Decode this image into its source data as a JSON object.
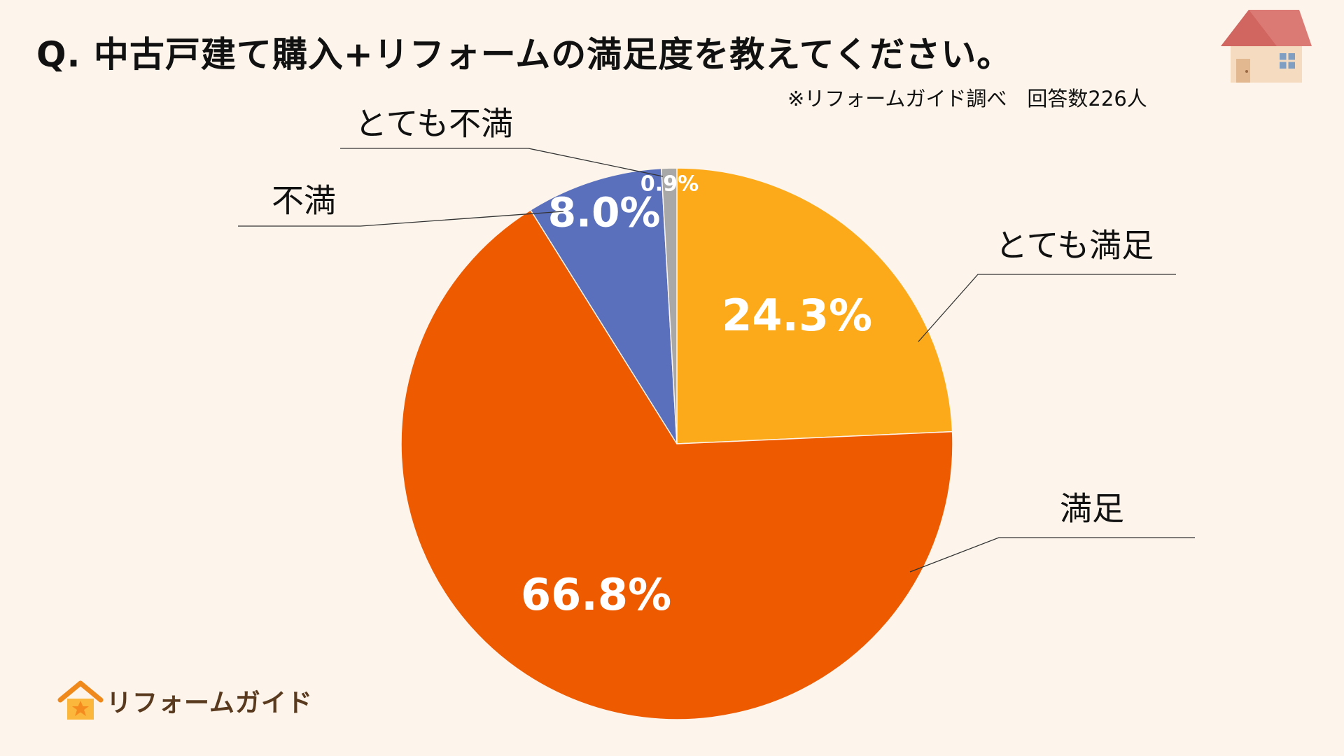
{
  "header": {
    "title": "Q.  中古戸建て購入+リフォームの満足度を教えてください。",
    "source": "※リフォームガイド調べ　回答数226人"
  },
  "logo": {
    "text": "リフォームガイド",
    "icon": "house-star-icon"
  },
  "decoration": {
    "icon": "house-icon"
  },
  "colors": {
    "background": "#fdf5eb",
    "very_satisfied": "#fcaa1a",
    "satisfied": "#ee5a00",
    "dissatisfied": "#5a70bd",
    "very_dissatisfied": "#a8a8a8"
  },
  "chart_data": {
    "type": "pie",
    "start": "12 o'clock",
    "direction": "clockwise",
    "categories": [
      "とても満足",
      "満足",
      "不満",
      "とても不満"
    ],
    "values": [
      24.3,
      66.8,
      8.0,
      0.9
    ],
    "value_labels": [
      "24.3%",
      "66.8%",
      "8.0%",
      "0.9%"
    ],
    "colors": [
      "#fcaa1a",
      "#ee5a00",
      "#5a70bd",
      "#a8a8a8"
    ]
  }
}
